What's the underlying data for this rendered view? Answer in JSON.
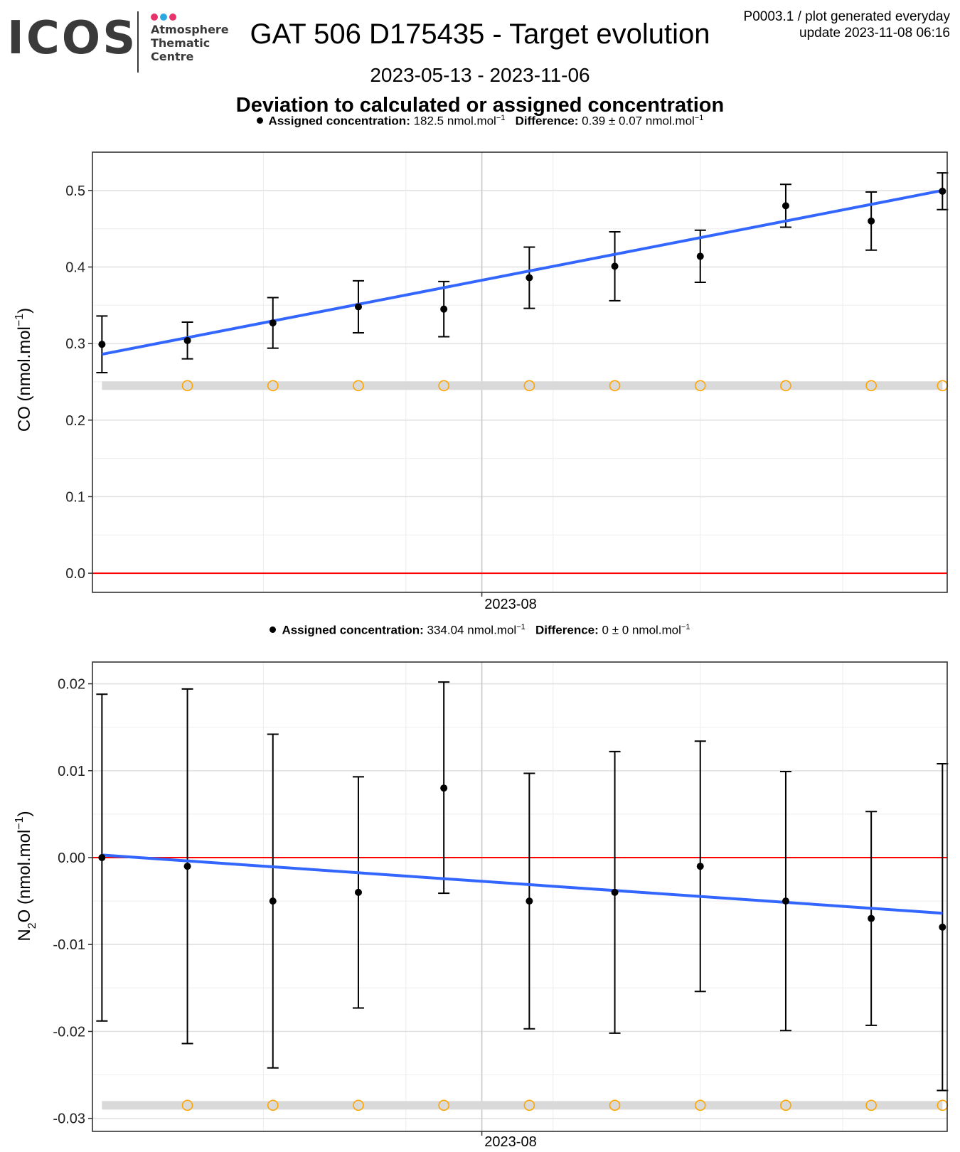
{
  "header": {
    "logo": {
      "wordmark": "ICOS",
      "line1": "Atmosphere",
      "line2": "Thematic",
      "line3": "Centre",
      "dot_colors": [
        "#e6336b",
        "#2aa8e0",
        "#e6336b"
      ]
    },
    "title": "GAT 506 D175435 - Target evolution",
    "corner_line1": "P0003.1 / plot generated everyday",
    "corner_line2": "update  2023-11-08 06:16",
    "date_range": "2023-05-13 - 2023-11-06",
    "subtitle": "Deviation to calculated or assigned concentration"
  },
  "panels": [
    {
      "legend": {
        "assigned_label": "Assigned concentration:",
        "assigned_value": "182.5",
        "assigned_unit": "nmol.mol",
        "unit_exp": "−1",
        "difference_label": "Difference:",
        "difference_value": "0.39 ± 0.07",
        "difference_unit": "nmol.mol"
      },
      "ylabel_species": "CO",
      "ylabel_unit": " (nmol.mol",
      "ylabel_exp": "−1",
      "ylabel_close": ")",
      "xtick_label": "2023-08"
    },
    {
      "legend": {
        "assigned_label": "Assigned concentration:",
        "assigned_value": "334.04",
        "assigned_unit": "nmol.mol",
        "unit_exp": "−1",
        "difference_label": "Difference:",
        "difference_value": "0 ± 0",
        "difference_unit": "nmol.mol"
      },
      "ylabel_species": "N",
      "ylabel_sub": "2",
      "ylabel_species_rest": "O",
      "ylabel_unit": " (nmol.mol",
      "ylabel_exp": "−1",
      "ylabel_close": ")",
      "xtick_label": "2023-08"
    }
  ],
  "chart_data": [
    {
      "type": "scatter",
      "series_label": "CO",
      "x": [
        "2023-05-13",
        "2023-05-31",
        "2023-06-18",
        "2023-07-06",
        "2023-07-24",
        "2023-08-11",
        "2023-08-29",
        "2023-09-16",
        "2023-10-04",
        "2023-10-22",
        "2023-11-06"
      ],
      "x_range": [
        "2023-05-11",
        "2023-11-07"
      ],
      "x_ticks": [
        "2023-08-01"
      ],
      "y": [
        0.299,
        0.304,
        0.327,
        0.348,
        0.345,
        0.386,
        0.401,
        0.414,
        0.48,
        0.46,
        0.499
      ],
      "y_err_low": [
        0.262,
        0.28,
        0.294,
        0.314,
        0.309,
        0.346,
        0.356,
        0.38,
        0.452,
        0.422,
        0.475
      ],
      "y_err_high": [
        0.336,
        0.328,
        0.36,
        0.382,
        0.381,
        0.426,
        0.446,
        0.448,
        0.508,
        0.498,
        0.523
      ],
      "ref_points_x": [
        "2023-05-31",
        "2023-06-18",
        "2023-07-06",
        "2023-07-24",
        "2023-08-11",
        "2023-08-29",
        "2023-09-16",
        "2023-10-04",
        "2023-10-22",
        "2023-11-06"
      ],
      "ref_level": 0.245,
      "trend": {
        "start": [
          "2023-05-13",
          0.286
        ],
        "end": [
          "2023-11-06",
          0.5
        ]
      },
      "zero_line": 0,
      "ylim": [
        -0.025,
        0.55
      ],
      "y_ticks": [
        0.0,
        0.1,
        0.2,
        0.3,
        0.4,
        0.5
      ],
      "y_tick_labels": [
        "0.0",
        "0.1",
        "0.2",
        "0.3",
        "0.4",
        "0.5"
      ],
      "grid": true,
      "colors": {
        "points": "#000000",
        "trend": "#3366ff",
        "zero": "#ff0000",
        "ref": "#ffa500",
        "band": "#d9d9d9"
      }
    },
    {
      "type": "scatter",
      "series_label": "N2O",
      "x": [
        "2023-05-13",
        "2023-05-31",
        "2023-06-18",
        "2023-07-06",
        "2023-07-24",
        "2023-08-11",
        "2023-08-29",
        "2023-09-16",
        "2023-10-04",
        "2023-10-22",
        "2023-11-06"
      ],
      "x_range": [
        "2023-05-11",
        "2023-11-07"
      ],
      "x_ticks": [
        "2023-08-01"
      ],
      "y": [
        0.0,
        -0.001,
        -0.005,
        -0.004,
        0.008,
        -0.005,
        -0.004,
        -0.001,
        -0.005,
        -0.007,
        -0.008
      ],
      "y_err_low": [
        -0.0188,
        -0.0214,
        -0.0242,
        -0.0173,
        -0.0041,
        -0.0197,
        -0.0202,
        -0.0154,
        -0.0199,
        -0.0193,
        -0.0268
      ],
      "y_err_high": [
        0.0188,
        0.0194,
        0.0142,
        0.0093,
        0.0202,
        0.0097,
        0.0122,
        0.0134,
        0.0099,
        0.0053,
        0.0108
      ],
      "ref_points_x": [
        "2023-05-31",
        "2023-06-18",
        "2023-07-06",
        "2023-07-24",
        "2023-08-11",
        "2023-08-29",
        "2023-09-16",
        "2023-10-04",
        "2023-10-22",
        "2023-11-06"
      ],
      "ref_level": -0.0285,
      "trend": {
        "start": [
          "2023-05-13",
          0.0003
        ],
        "end": [
          "2023-11-06",
          -0.0064
        ]
      },
      "zero_line": 0,
      "ylim": [
        -0.0315,
        0.0225
      ],
      "y_ticks": [
        -0.03,
        -0.02,
        -0.01,
        0.0,
        0.01,
        0.02
      ],
      "y_tick_labels": [
        "-0.03",
        "-0.02",
        "-0.01",
        "0.00",
        "0.01",
        "0.02"
      ],
      "grid": true,
      "colors": {
        "points": "#000000",
        "trend": "#3366ff",
        "zero": "#ff0000",
        "ref": "#ffa500",
        "band": "#d9d9d9"
      }
    }
  ]
}
